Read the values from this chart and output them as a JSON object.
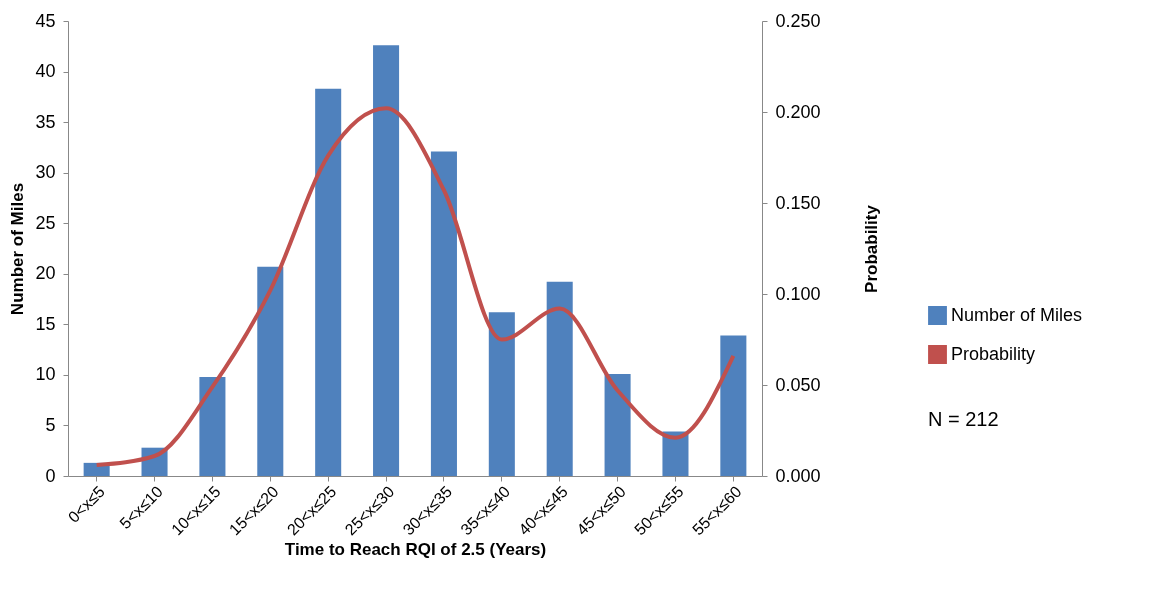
{
  "chart_data": {
    "type": "bar",
    "xlabel": "Time to Reach RQI of 2.5 (Years)",
    "ylabel": "Number of Miles",
    "y2label": "Probability",
    "categories": [
      "0<x≤5",
      "5<x≤10",
      "10<x≤15",
      "15<x≤20",
      "20<x≤25",
      "25<x≤30",
      "30<x≤35",
      "35<x≤40",
      "40<x≤45",
      "45<x≤50",
      "50<x≤55",
      "55<x≤60"
    ],
    "series": [
      {
        "name": "Number of Miles",
        "color": "#4f81bd",
        "values": [
          1.3,
          2.8,
          9.8,
          20.7,
          38.3,
          42.6,
          32.1,
          16.2,
          19.2,
          10.1,
          4.4,
          13.9
        ]
      },
      {
        "name": "Probability",
        "type": "line",
        "axis": "y2",
        "color": "#c0504d",
        "values": [
          0.006,
          0.011,
          0.049,
          0.102,
          0.176,
          0.202,
          0.157,
          0.075,
          0.092,
          0.047,
          0.021,
          0.066
        ]
      }
    ],
    "ylim": [
      0,
      45
    ],
    "yticks": [
      0,
      5,
      10,
      15,
      20,
      25,
      30,
      35,
      40,
      45
    ],
    "y2lim": [
      0,
      0.25
    ],
    "y2ticks": [
      {
        "value": 0,
        "label": "0.000"
      },
      {
        "value": 0.05,
        "label": "0.050"
      },
      {
        "value": 0.1,
        "label": "0.100"
      },
      {
        "value": 0.15,
        "label": "0.150"
      },
      {
        "value": 0.2,
        "label": "0.200"
      },
      {
        "value": 0.25,
        "label": "0.250"
      }
    ],
    "legend": "right",
    "marker": "none",
    "line_style": "solid",
    "annotations": [
      "N = 212"
    ]
  }
}
